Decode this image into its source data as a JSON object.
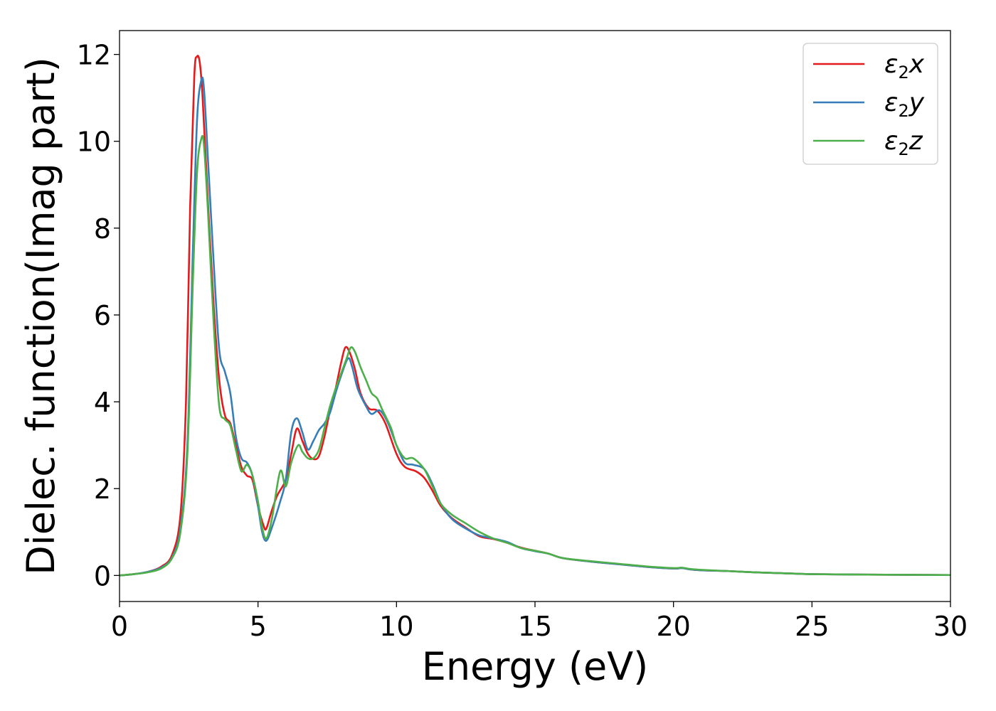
{
  "chart_data": {
    "type": "line",
    "title": "",
    "xlabel": "Energy (eV)",
    "ylabel": "Dielec. function(Imag part)",
    "xlim": [
      0,
      30
    ],
    "ylim": [
      -0.6,
      12.55
    ],
    "xticks": [
      0,
      5,
      10,
      15,
      20,
      25,
      30
    ],
    "yticks": [
      0,
      2,
      4,
      6,
      8,
      10,
      12
    ],
    "grid": false,
    "legend": "top-right",
    "series": [
      {
        "name": "ε2x",
        "label_base": "ε",
        "label_sub": "2",
        "label_var": "x",
        "color": "#e41a1c",
        "points": [
          [
            0,
            0
          ],
          [
            0.5,
            0.03
          ],
          [
            1.0,
            0.08
          ],
          [
            1.5,
            0.2
          ],
          [
            1.9,
            0.48
          ],
          [
            2.2,
            1.4
          ],
          [
            2.4,
            4.0
          ],
          [
            2.55,
            8.5
          ],
          [
            2.7,
            11.5
          ],
          [
            2.8,
            11.95
          ],
          [
            2.9,
            11.8
          ],
          [
            3.0,
            11.0
          ],
          [
            3.2,
            8.5
          ],
          [
            3.4,
            6.2
          ],
          [
            3.6,
            4.5
          ],
          [
            3.8,
            3.7
          ],
          [
            4.0,
            3.5
          ],
          [
            4.2,
            3.0
          ],
          [
            4.4,
            2.5
          ],
          [
            4.6,
            2.3
          ],
          [
            4.8,
            2.2
          ],
          [
            5.0,
            1.6
          ],
          [
            5.2,
            1.15
          ],
          [
            5.3,
            1.08
          ],
          [
            5.5,
            1.5
          ],
          [
            5.7,
            1.85
          ],
          [
            6.0,
            2.2
          ],
          [
            6.2,
            2.8
          ],
          [
            6.4,
            3.38
          ],
          [
            6.6,
            3.1
          ],
          [
            6.8,
            2.8
          ],
          [
            7.0,
            2.68
          ],
          [
            7.2,
            2.75
          ],
          [
            7.4,
            3.2
          ],
          [
            7.6,
            3.8
          ],
          [
            7.8,
            4.3
          ],
          [
            8.0,
            4.9
          ],
          [
            8.15,
            5.25
          ],
          [
            8.3,
            5.15
          ],
          [
            8.5,
            4.75
          ],
          [
            8.7,
            4.2
          ],
          [
            9.0,
            3.85
          ],
          [
            9.3,
            3.8
          ],
          [
            9.6,
            3.5
          ],
          [
            10.0,
            2.8
          ],
          [
            10.3,
            2.5
          ],
          [
            10.7,
            2.4
          ],
          [
            11.0,
            2.25
          ],
          [
            11.3,
            1.95
          ],
          [
            11.6,
            1.6
          ],
          [
            12.0,
            1.32
          ],
          [
            12.5,
            1.1
          ],
          [
            13.0,
            0.9
          ],
          [
            13.5,
            0.84
          ],
          [
            14.0,
            0.75
          ],
          [
            14.5,
            0.64
          ],
          [
            15.0,
            0.57
          ],
          [
            15.5,
            0.5
          ],
          [
            16.0,
            0.4
          ],
          [
            17.0,
            0.32
          ],
          [
            18.0,
            0.26
          ],
          [
            19.0,
            0.2
          ],
          [
            20.0,
            0.16
          ],
          [
            20.3,
            0.17
          ],
          [
            20.6,
            0.14
          ],
          [
            21.0,
            0.12
          ],
          [
            22.0,
            0.1
          ],
          [
            23.0,
            0.07
          ],
          [
            24.0,
            0.05
          ],
          [
            25.0,
            0.03
          ],
          [
            27.0,
            0.02
          ],
          [
            30.0,
            0.01
          ]
        ]
      },
      {
        "name": "ε2y",
        "label_base": "ε",
        "label_sub": "2",
        "label_var": "y",
        "color": "#377eb8",
        "points": [
          [
            0,
            0
          ],
          [
            0.5,
            0.03
          ],
          [
            1.0,
            0.08
          ],
          [
            1.5,
            0.18
          ],
          [
            1.9,
            0.42
          ],
          [
            2.2,
            1.1
          ],
          [
            2.45,
            3.0
          ],
          [
            2.65,
            7.5
          ],
          [
            2.8,
            10.5
          ],
          [
            2.95,
            11.4
          ],
          [
            3.05,
            11.2
          ],
          [
            3.2,
            9.5
          ],
          [
            3.4,
            7.2
          ],
          [
            3.6,
            5.2
          ],
          [
            3.8,
            4.7
          ],
          [
            4.0,
            4.2
          ],
          [
            4.2,
            3.2
          ],
          [
            4.4,
            2.7
          ],
          [
            4.6,
            2.6
          ],
          [
            4.8,
            2.3
          ],
          [
            5.0,
            1.6
          ],
          [
            5.15,
            1.0
          ],
          [
            5.3,
            0.8
          ],
          [
            5.5,
            1.1
          ],
          [
            5.8,
            1.7
          ],
          [
            6.0,
            2.2
          ],
          [
            6.2,
            3.3
          ],
          [
            6.4,
            3.62
          ],
          [
            6.6,
            3.3
          ],
          [
            6.8,
            2.9
          ],
          [
            7.0,
            3.1
          ],
          [
            7.2,
            3.35
          ],
          [
            7.4,
            3.5
          ],
          [
            7.6,
            3.75
          ],
          [
            7.8,
            4.2
          ],
          [
            8.0,
            4.6
          ],
          [
            8.25,
            5.0
          ],
          [
            8.4,
            4.8
          ],
          [
            8.6,
            4.3
          ],
          [
            8.9,
            3.9
          ],
          [
            9.1,
            3.72
          ],
          [
            9.4,
            3.8
          ],
          [
            9.7,
            3.5
          ],
          [
            10.0,
            3.0
          ],
          [
            10.3,
            2.6
          ],
          [
            10.6,
            2.55
          ],
          [
            11.0,
            2.45
          ],
          [
            11.3,
            2.1
          ],
          [
            11.6,
            1.65
          ],
          [
            12.0,
            1.3
          ],
          [
            12.5,
            1.08
          ],
          [
            13.0,
            0.92
          ],
          [
            13.5,
            0.85
          ],
          [
            14.0,
            0.77
          ],
          [
            14.5,
            0.63
          ],
          [
            15.0,
            0.56
          ],
          [
            15.5,
            0.5
          ],
          [
            16.0,
            0.4
          ],
          [
            17.0,
            0.32
          ],
          [
            18.0,
            0.26
          ],
          [
            19.0,
            0.2
          ],
          [
            20.0,
            0.16
          ],
          [
            20.3,
            0.17
          ],
          [
            20.6,
            0.14
          ],
          [
            21.0,
            0.12
          ],
          [
            22.0,
            0.1
          ],
          [
            23.0,
            0.07
          ],
          [
            24.0,
            0.05
          ],
          [
            25.0,
            0.03
          ],
          [
            27.0,
            0.02
          ],
          [
            30.0,
            0.01
          ]
        ]
      },
      {
        "name": "ε2z",
        "label_base": "ε",
        "label_sub": "2",
        "label_var": "z",
        "color": "#4daf4a",
        "points": [
          [
            0,
            0
          ],
          [
            0.5,
            0.03
          ],
          [
            1.0,
            0.07
          ],
          [
            1.5,
            0.16
          ],
          [
            1.9,
            0.4
          ],
          [
            2.2,
            1.0
          ],
          [
            2.45,
            2.8
          ],
          [
            2.65,
            6.8
          ],
          [
            2.8,
            9.3
          ],
          [
            2.95,
            10.05
          ],
          [
            3.05,
            9.9
          ],
          [
            3.2,
            8.3
          ],
          [
            3.4,
            5.8
          ],
          [
            3.6,
            3.9
          ],
          [
            3.8,
            3.6
          ],
          [
            4.0,
            3.45
          ],
          [
            4.2,
            2.9
          ],
          [
            4.4,
            2.4
          ],
          [
            4.6,
            2.55
          ],
          [
            4.8,
            2.3
          ],
          [
            5.0,
            1.7
          ],
          [
            5.15,
            1.1
          ],
          [
            5.3,
            0.85
          ],
          [
            5.5,
            1.3
          ],
          [
            5.8,
            2.4
          ],
          [
            6.0,
            2.05
          ],
          [
            6.2,
            2.6
          ],
          [
            6.45,
            3.0
          ],
          [
            6.6,
            2.85
          ],
          [
            6.8,
            2.7
          ],
          [
            7.0,
            2.7
          ],
          [
            7.2,
            2.9
          ],
          [
            7.4,
            3.4
          ],
          [
            7.6,
            3.9
          ],
          [
            7.8,
            4.3
          ],
          [
            8.0,
            4.65
          ],
          [
            8.2,
            5.0
          ],
          [
            8.35,
            5.25
          ],
          [
            8.5,
            5.15
          ],
          [
            8.7,
            4.8
          ],
          [
            8.9,
            4.5
          ],
          [
            9.1,
            4.2
          ],
          [
            9.3,
            4.08
          ],
          [
            9.5,
            3.8
          ],
          [
            9.8,
            3.4
          ],
          [
            10.0,
            3.0
          ],
          [
            10.3,
            2.7
          ],
          [
            10.6,
            2.7
          ],
          [
            11.0,
            2.45
          ],
          [
            11.3,
            2.05
          ],
          [
            11.6,
            1.65
          ],
          [
            12.0,
            1.4
          ],
          [
            12.5,
            1.2
          ],
          [
            13.0,
            1.0
          ],
          [
            13.5,
            0.85
          ],
          [
            14.0,
            0.75
          ],
          [
            14.5,
            0.63
          ],
          [
            15.0,
            0.57
          ],
          [
            15.5,
            0.5
          ],
          [
            16.0,
            0.4
          ],
          [
            17.0,
            0.33
          ],
          [
            18.0,
            0.27
          ],
          [
            19.0,
            0.21
          ],
          [
            20.0,
            0.17
          ],
          [
            20.3,
            0.18
          ],
          [
            20.6,
            0.15
          ],
          [
            21.0,
            0.13
          ],
          [
            22.0,
            0.1
          ],
          [
            23.0,
            0.07
          ],
          [
            24.0,
            0.05
          ],
          [
            25.0,
            0.03
          ],
          [
            27.0,
            0.02
          ],
          [
            30.0,
            0.01
          ]
        ]
      }
    ]
  }
}
